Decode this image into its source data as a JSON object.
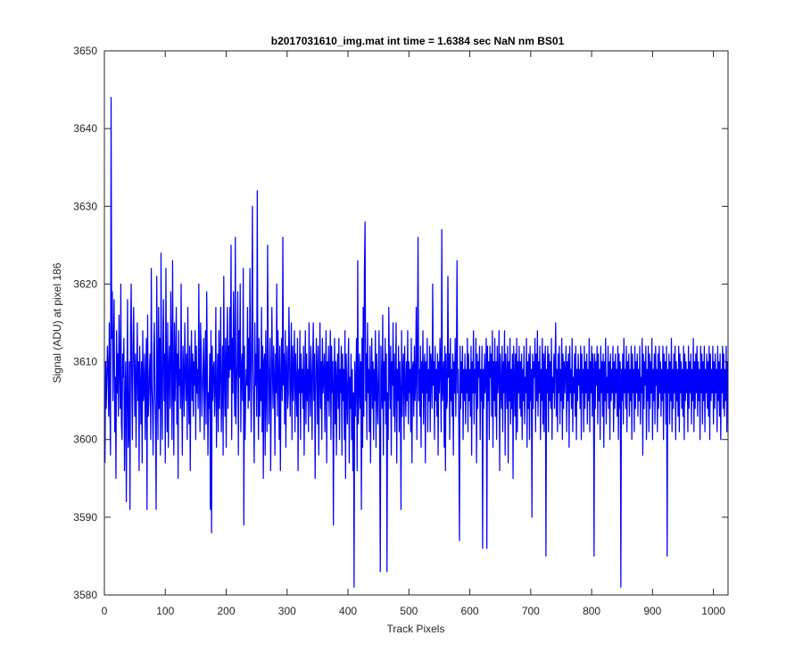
{
  "chart_data": {
    "type": "line",
    "title": "b2017031610_img.mat int time = 1.6384 sec  NaN nm BS01",
    "xlabel": "Track Pixels",
    "ylabel": "Signal (ADU) at pixel 186",
    "xlim": [
      0,
      1024
    ],
    "ylim": [
      3580,
      3650
    ],
    "xticks": [
      0,
      100,
      200,
      300,
      400,
      500,
      600,
      700,
      800,
      900,
      1000
    ],
    "yticks": [
      3580,
      3590,
      3600,
      3610,
      3620,
      3630,
      3640,
      3650
    ],
    "grid": false,
    "legend": "none",
    "line_color": "#0000ff",
    "series": [
      {
        "x_start": 1,
        "x_step": 1,
        "stats": {
          "mean": 3605,
          "min": 3581,
          "max": 3644
        },
        "values": [
          3597,
          3610,
          3604,
          3608,
          3612,
          3609,
          3603,
          3615,
          3605,
          3598,
          3644,
          3613,
          3619,
          3605,
          3612,
          3618,
          3601,
          3608,
          3595,
          3614,
          3606,
          3611,
          3603,
          3616,
          3609,
          3604,
          3620,
          3602,
          3600,
          3611,
          3608,
          3613,
          3596,
          3605,
          3610,
          3592,
          3606,
          3618,
          3599,
          3601,
          3610,
          3591,
          3614,
          3620,
          3607,
          3600,
          3612,
          3617,
          3609,
          3603,
          3611,
          3599,
          3608,
          3615,
          3605,
          3610,
          3596,
          3612,
          3607,
          3602,
          3610,
          3597,
          3614,
          3605,
          3606,
          3611,
          3600,
          3608,
          3613,
          3591,
          3616,
          3603,
          3605,
          3609,
          3611,
          3600,
          3622,
          3607,
          3604,
          3598,
          3611,
          3615,
          3606,
          3602,
          3591,
          3621,
          3608,
          3600,
          3617,
          3604,
          3613,
          3598,
          3624,
          3607,
          3600,
          3612,
          3618,
          3605,
          3611,
          3597,
          3622,
          3608,
          3601,
          3615,
          3599,
          3609,
          3612,
          3604,
          3619,
          3611,
          3600,
          3623,
          3607,
          3598,
          3615,
          3605,
          3610,
          3617,
          3602,
          3611,
          3595,
          3614,
          3607,
          3609,
          3604,
          3620,
          3606,
          3598,
          3612,
          3608,
          3603,
          3615,
          3609,
          3605,
          3611,
          3600,
          3617,
          3607,
          3602,
          3612,
          3596,
          3609,
          3614,
          3605,
          3611,
          3603,
          3610,
          3607,
          3614,
          3600,
          3612,
          3606,
          3609,
          3604,
          3620,
          3608,
          3601,
          3615,
          3611,
          3603,
          3606,
          3609,
          3613,
          3600,
          3608,
          3614,
          3602,
          3619,
          3609,
          3598,
          3606,
          3604,
          3611,
          3591,
          3614,
          3588,
          3612,
          3605,
          3609,
          3610,
          3603,
          3607,
          3617,
          3599,
          3606,
          3611,
          3601,
          3614,
          3604,
          3609,
          3617,
          3601,
          3606,
          3612,
          3598,
          3621,
          3608,
          3603,
          3613,
          3599,
          3611,
          3617,
          3604,
          3612,
          3608,
          3617,
          3609,
          3625,
          3600,
          3613,
          3606,
          3619,
          3610,
          3603,
          3626,
          3602,
          3607,
          3610,
          3619,
          3598,
          3614,
          3608,
          3620,
          3601,
          3609,
          3611,
          3605,
          3622,
          3589,
          3612,
          3600,
          3606,
          3609,
          3607,
          3617,
          3604,
          3613,
          3605,
          3622,
          3610,
          3601,
          3612,
          3630,
          3609,
          3604,
          3597,
          3615,
          3607,
          3611,
          3603,
          3632,
          3608,
          3600,
          3613,
          3603,
          3609,
          3605,
          3617,
          3601,
          3612,
          3595,
          3610,
          3611,
          3598,
          3614,
          3606,
          3601,
          3625,
          3610,
          3602,
          3608,
          3613,
          3596,
          3605,
          3617,
          3609,
          3604,
          3612,
          3608,
          3598,
          3611,
          3606,
          3620,
          3603,
          3614,
          3609,
          3600,
          3612,
          3596,
          3608,
          3613,
          3605,
          3626,
          3607,
          3611,
          3602,
          3614,
          3599,
          3609,
          3612,
          3604,
          3606,
          3617,
          3611,
          3603,
          3608,
          3615,
          3600,
          3612,
          3605,
          3609,
          3614,
          3601,
          3611,
          3607,
          3603,
          3613,
          3596,
          3609,
          3606,
          3614,
          3600,
          3611,
          3606,
          3609,
          3604,
          3612,
          3598,
          3607,
          3614,
          3602,
          3611,
          3605,
          3609,
          3601,
          3615,
          3607,
          3603,
          3612,
          3608,
          3600,
          3610,
          3615,
          3605,
          3611,
          3595,
          3606,
          3613,
          3609,
          3602,
          3612,
          3598,
          3608,
          3615,
          3604,
          3610,
          3600,
          3613,
          3606,
          3608,
          3611,
          3601,
          3609,
          3614,
          3597,
          3610,
          3605,
          3612,
          3603,
          3608,
          3614,
          3600,
          3612,
          3606,
          3610,
          3589,
          3607,
          3613,
          3602,
          3610,
          3598,
          3608,
          3611,
          3604,
          3613,
          3600,
          3609,
          3606,
          3612,
          3598,
          3611,
          3605,
          3609,
          3600,
          3614,
          3595,
          3611,
          3606,
          3602,
          3609,
          3613,
          3597,
          3608,
          3604,
          3611,
          3600,
          3609,
          3596,
          3606,
          3581,
          3610,
          3603,
          3608,
          3613,
          3596,
          3623,
          3602,
          3606,
          3611,
          3604,
          3610,
          3591,
          3613,
          3599,
          3617,
          3603,
          3622,
          3628,
          3605,
          3611,
          3600,
          3615,
          3606,
          3609,
          3601,
          3612,
          3597,
          3608,
          3613,
          3604,
          3610,
          3600,
          3609,
          3605,
          3614,
          3599,
          3611,
          3606,
          3602,
          3609,
          3614,
          3600,
          3583,
          3612,
          3607,
          3604,
          3616,
          3598,
          3610,
          3605,
          3613,
          3602,
          3611,
          3583,
          3606,
          3600,
          3617,
          3609,
          3604,
          3612,
          3598,
          3610,
          3607,
          3615,
          3603,
          3611,
          3601,
          3608,
          3615,
          3597,
          3609,
          3605,
          3612,
          3601,
          3610,
          3606,
          3591,
          3614,
          3603,
          3609,
          3611,
          3600,
          3612,
          3607,
          3603,
          3610,
          3605,
          3614,
          3602,
          3610,
          3606,
          3609,
          3601,
          3613,
          3597,
          3609,
          3610,
          3603,
          3612,
          3605,
          3608,
          3617,
          3600,
          3611,
          3626,
          3605,
          3609,
          3603,
          3612,
          3599,
          3610,
          3606,
          3614,
          3602,
          3609,
          3611,
          3597,
          3610,
          3606,
          3613,
          3601,
          3609,
          3605,
          3612,
          3601,
          3611,
          3609,
          3604,
          3620,
          3607,
          3610,
          3600,
          3612,
          3605,
          3609,
          3603,
          3611,
          3598,
          3610,
          3606,
          3613,
          3609,
          3601,
          3627,
          3605,
          3607,
          3610,
          3599,
          3612,
          3596,
          3611,
          3604,
          3605,
          3621,
          3608,
          3611,
          3600,
          3613,
          3605,
          3609,
          3603,
          3611,
          3598,
          3610,
          3606,
          3613,
          3603,
          3610,
          3623,
          3606,
          3609,
          3601,
          3587,
          3612,
          3604,
          3610,
          3606,
          3612,
          3600,
          3609,
          3605,
          3611,
          3602,
          3609,
          3606,
          3613,
          3601,
          3611,
          3605,
          3609,
          3603,
          3612,
          3598,
          3610,
          3606,
          3614,
          3602,
          3609,
          3606,
          3613,
          3597,
          3611,
          3604,
          3610,
          3608,
          3612,
          3600,
          3609,
          3605,
          3612,
          3586,
          3609,
          3604,
          3611,
          3606,
          3608,
          3613,
          3586,
          3612,
          3605,
          3610,
          3600,
          3612,
          3608,
          3611,
          3603,
          3614,
          3599,
          3610,
          3605,
          3613,
          3603,
          3610,
          3600,
          3612,
          3606,
          3608,
          3614,
          3596,
          3611,
          3607,
          3604,
          3612,
          3601,
          3610,
          3606,
          3614,
          3598,
          3611,
          3608,
          3604,
          3612,
          3597,
          3610,
          3605,
          3613,
          3602,
          3609,
          3604,
          3611,
          3595,
          3612,
          3608,
          3603,
          3611,
          3600,
          3613,
          3601,
          3610,
          3606,
          3612,
          3604,
          3610,
          3603,
          3611,
          3600,
          3609,
          3605,
          3612,
          3602,
          3608,
          3606,
          3613,
          3599,
          3610,
          3604,
          3611,
          3600,
          3612,
          3605,
          3609,
          3590,
          3611,
          3604,
          3610,
          3608,
          3613,
          3601,
          3611,
          3605,
          3614,
          3603,
          3610,
          3606,
          3612,
          3600,
          3609,
          3605,
          3613,
          3602,
          3611,
          3601,
          3610,
          3612,
          3585,
          3609,
          3606,
          3612,
          3601,
          3611,
          3605,
          3610,
          3604,
          3613,
          3600,
          3608,
          3606,
          3611,
          3604,
          3610,
          3615,
          3603,
          3609,
          3601,
          3611,
          3606,
          3612,
          3602,
          3609,
          3605,
          3613,
          3600,
          3611,
          3604,
          3610,
          3606,
          3609,
          3612,
          3601,
          3610,
          3605,
          3611,
          3599,
          3612,
          3606,
          3609,
          3604,
          3613,
          3601,
          3608,
          3606,
          3611,
          3603,
          3612,
          3600,
          3609,
          3605,
          3611,
          3607,
          3609,
          3604,
          3612,
          3600,
          3611,
          3606,
          3609,
          3601,
          3612,
          3604,
          3610,
          3606,
          3611,
          3602,
          3609,
          3605,
          3613,
          3601,
          3610,
          3606,
          3612,
          3603,
          3611,
          3609,
          3585,
          3611,
          3604,
          3610,
          3607,
          3612,
          3602,
          3611,
          3605,
          3609,
          3600,
          3612,
          3606,
          3610,
          3603,
          3611,
          3599,
          3610,
          3605,
          3613,
          3602,
          3608,
          3606,
          3612,
          3604,
          3610,
          3600,
          3611,
          3605,
          3609,
          3606,
          3612,
          3601,
          3610,
          3604,
          3611,
          3606,
          3609,
          3603,
          3612,
          3600,
          3611,
          3604,
          3610,
          3581,
          3609,
          3605,
          3611,
          3602,
          3613,
          3606,
          3609,
          3604,
          3612,
          3601,
          3610,
          3606,
          3611,
          3603,
          3609,
          3605,
          3612,
          3600,
          3611,
          3606,
          3609,
          3601,
          3612,
          3604,
          3610,
          3606,
          3611,
          3603,
          3609,
          3605,
          3612,
          3602,
          3608,
          3606,
          3613,
          3598,
          3611,
          3604,
          3610,
          3607,
          3612,
          3600,
          3609,
          3605,
          3612,
          3601,
          3611,
          3604,
          3610,
          3606,
          3613,
          3600,
          3609,
          3605,
          3611,
          3602,
          3612,
          3607,
          3609,
          3601,
          3611,
          3604,
          3612,
          3606,
          3610,
          3603,
          3609,
          3605,
          3612,
          3600,
          3611,
          3606,
          3610,
          3602,
          3612,
          3585,
          3609,
          3606,
          3611,
          3602,
          3610,
          3605,
          3613,
          3601,
          3609,
          3604,
          3611,
          3606,
          3612,
          3600,
          3610,
          3605,
          3609,
          3603,
          3612,
          3601,
          3611,
          3606,
          3610,
          3604,
          3609,
          3603,
          3612,
          3600,
          3611,
          3605,
          3610,
          3606,
          3609,
          3601,
          3612,
          3604,
          3610,
          3606,
          3611,
          3602,
          3609,
          3605,
          3613,
          3601,
          3610,
          3604,
          3611,
          3606,
          3612,
          3603,
          3610,
          3605,
          3609,
          3600,
          3612,
          3606,
          3611,
          3602,
          3610,
          3605,
          3612,
          3601,
          3609,
          3606,
          3611,
          3604,
          3610,
          3603,
          3612,
          3600,
          3611,
          3605,
          3609,
          3606,
          3612,
          3602,
          3610,
          3604,
          3611,
          3606,
          3609,
          3601,
          3612,
          3605,
          3610,
          3603,
          3611,
          3600,
          3609,
          3606,
          3612,
          3604,
          3611,
          3603,
          3609,
          3605,
          3612,
          3601,
          3610,
          3606,
          3611,
          3602,
          3609,
          3605,
          3612,
          3600,
          3611,
          3604,
          3610,
          3606,
          3612,
          3603,
          3609,
          3605,
          3611,
          3601,
          3612,
          3606,
          3610,
          3604,
          3609,
          3603,
          3612,
          3600,
          3611,
          3605,
          3610,
          3606,
          3609,
          3602,
          3612,
          3604,
          3611,
          3603,
          3610,
          3605,
          3612,
          3601,
          3609,
          3606,
          3611,
          3604,
          3610,
          3603,
          3612,
          3600,
          3611,
          3605,
          3609,
          3606,
          3612,
          3602,
          3610,
          3604,
          3611,
          3606,
          3609,
          3601,
          3612,
          3605,
          3610,
          3603,
          3611,
          3600,
          3609,
          3606,
          3612,
          3597
        ]
      }
    ]
  }
}
